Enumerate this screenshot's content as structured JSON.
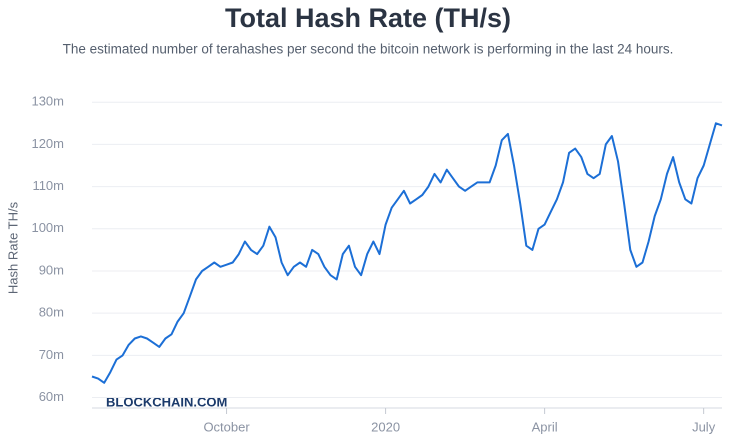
{
  "chart_data": {
    "type": "line",
    "title": "Total Hash Rate (TH/s)",
    "subtitle": "The estimated number of terahashes per second the bitcoin network is performing in the last 24 hours.",
    "y_label": "Hash Rate TH/s",
    "watermark": "BLOCKCHAIN.COM",
    "color": "#1c6fd6",
    "grid": true,
    "categories": [
      null,
      null,
      null,
      null,
      null,
      null,
      null,
      null,
      null,
      null,
      null,
      null,
      null,
      null,
      null,
      null,
      null,
      null,
      null,
      null,
      null,
      null,
      "October",
      null,
      null,
      null,
      null,
      null,
      null,
      null,
      null,
      null,
      null,
      null,
      null,
      null,
      null,
      null,
      null,
      null,
      null,
      null,
      null,
      null,
      null,
      null,
      null,
      null,
      "2020",
      null,
      null,
      null,
      null,
      null,
      null,
      null,
      null,
      null,
      null,
      null,
      null,
      null,
      null,
      null,
      null,
      null,
      null,
      null,
      null,
      null,
      null,
      null,
      null,
      null,
      "April",
      null,
      null,
      null,
      null,
      null,
      null,
      null,
      null,
      null,
      null,
      null,
      null,
      null,
      null,
      null,
      null,
      null,
      null,
      null,
      null,
      null,
      null,
      null,
      null,
      null,
      "July",
      null,
      null,
      null
    ],
    "values": [
      65,
      64.5,
      63.5,
      66,
      69,
      70,
      72.5,
      74,
      74.5,
      74,
      73,
      72,
      74,
      75,
      78,
      80,
      84,
      88,
      90,
      91,
      92,
      91,
      91.5,
      92,
      94,
      97,
      95,
      94,
      96,
      100.5,
      98,
      92,
      89,
      91,
      92,
      91,
      95,
      94,
      91,
      89,
      88,
      94,
      96,
      91,
      89,
      94,
      97,
      94,
      101,
      105,
      107,
      109,
      106,
      107,
      108,
      110,
      113,
      111,
      114,
      112,
      110,
      109,
      110,
      111,
      111,
      111,
      115,
      121,
      122.5,
      115,
      106,
      96,
      95,
      100,
      101,
      104,
      107,
      111,
      118,
      119,
      117,
      113,
      112,
      113,
      120,
      122,
      116,
      106,
      95,
      91,
      92,
      97,
      103,
      107,
      113,
      117,
      111,
      107,
      106,
      112,
      115,
      120,
      125,
      124.5
    ],
    "ylim": [
      58,
      131
    ],
    "yticks": [
      {
        "value": 60,
        "label": "60m"
      },
      {
        "value": 70,
        "label": "70m"
      },
      {
        "value": 80,
        "label": "80m"
      },
      {
        "value": 90,
        "label": "90m"
      },
      {
        "value": 100,
        "label": "100m"
      },
      {
        "value": 110,
        "label": "110m"
      },
      {
        "value": 120,
        "label": "120m"
      },
      {
        "value": 130,
        "label": "130m"
      }
    ]
  }
}
